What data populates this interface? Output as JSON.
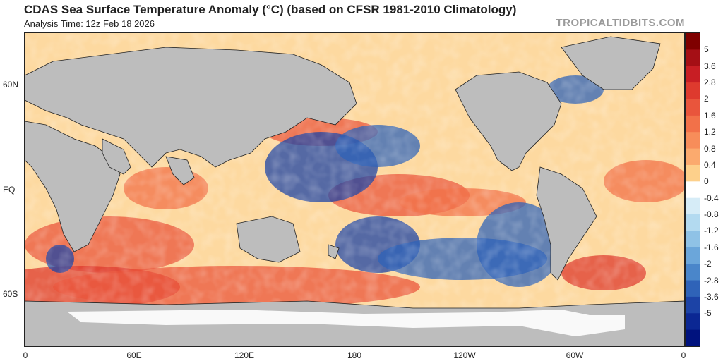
{
  "header": {
    "title": "CDAS Sea Surface Temperature Anomaly (°C) (based on CFSR 1981-2010 Climatology)",
    "analysis_time": "Analysis Time: 12z Feb 18 2026",
    "brand": "TROPICALTIDBITS.COM"
  },
  "map": {
    "lat_labels": [
      "60N",
      "EQ",
      "60S"
    ],
    "lon_labels": [
      "0",
      "60E",
      "120E",
      "180",
      "120W",
      "60W",
      "0"
    ],
    "land_color": "#bdbdbd",
    "ice_color": "#ffffff"
  },
  "colorbar": {
    "labels": [
      "5",
      "3.6",
      "2.8",
      "2",
      "1.6",
      "1.2",
      "0.8",
      "0.4",
      "0",
      "-0.4",
      "-0.8",
      "-1.2",
      "-1.6",
      "-2",
      "-2.8",
      "-3.6",
      "-5"
    ],
    "colors": [
      "#7f0000",
      "#a50f15",
      "#c81e24",
      "#de3a2e",
      "#e9553c",
      "#f27149",
      "#f78d5a",
      "#fbaa6e",
      "#fdd08b",
      "#ffffff",
      "#d6ecf7",
      "#b3daf0",
      "#8fc2e6",
      "#6ba6da",
      "#4a86ca",
      "#2f63b8",
      "#1c43a6",
      "#0b2793",
      "#00127e"
    ]
  }
}
